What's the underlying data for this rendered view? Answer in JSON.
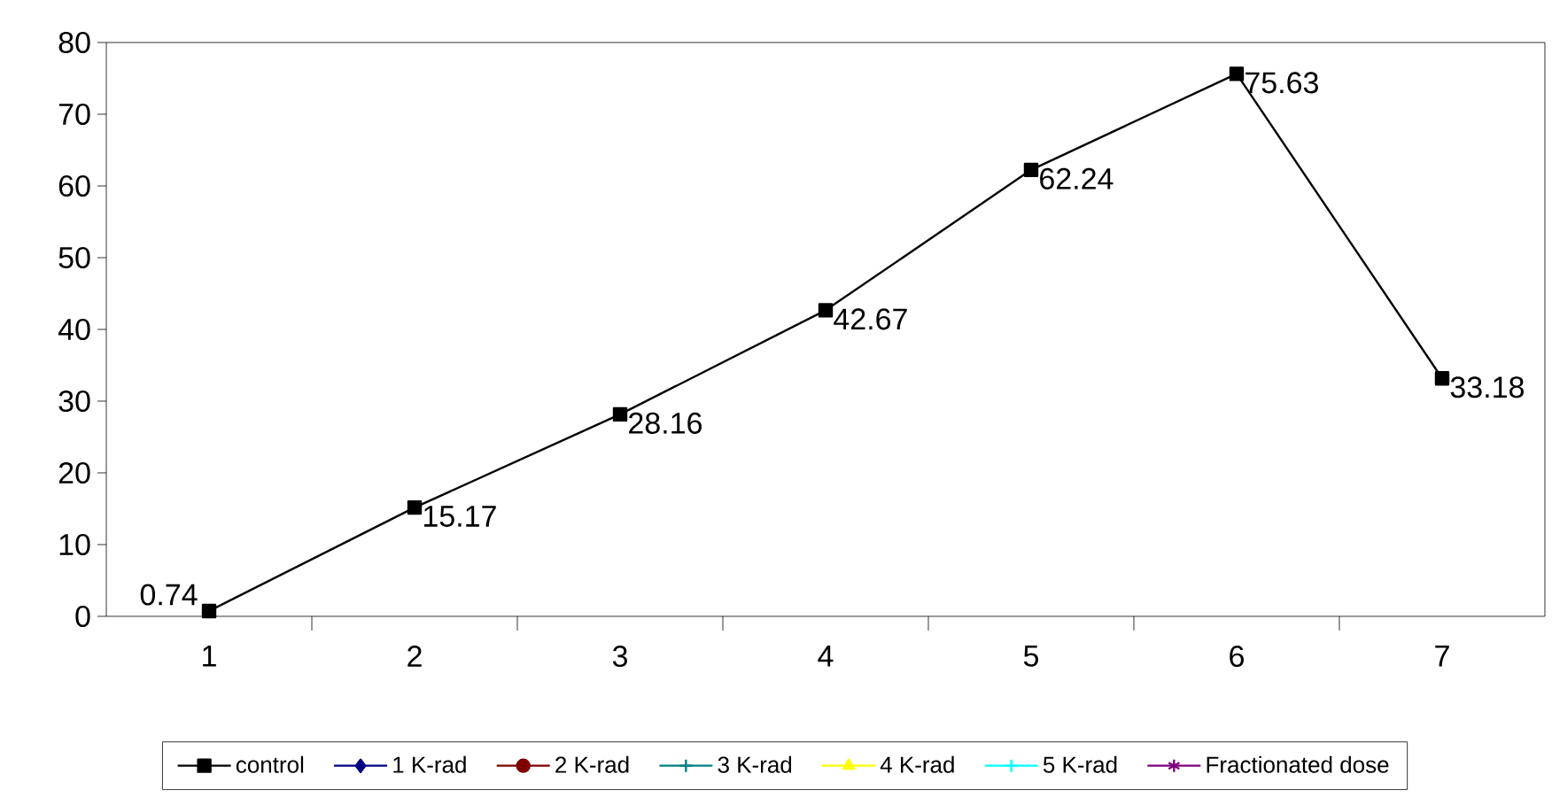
{
  "chart_data": {
    "type": "line",
    "categories": [
      "1",
      "2",
      "3",
      "4",
      "5",
      "6",
      "7"
    ],
    "series": [
      {
        "name": "control",
        "color": "#000000",
        "marker": "square",
        "values": [
          0.74,
          15.17,
          28.16,
          42.67,
          62.24,
          75.63,
          33.18
        ]
      },
      {
        "name": "1 K-rad",
        "color": "#000080",
        "marker": "diamond",
        "values": [
          null,
          null,
          null,
          null,
          null,
          null,
          null
        ]
      },
      {
        "name": "2 K-rad",
        "color": "#800000",
        "marker": "circle",
        "values": [
          null,
          null,
          null,
          null,
          null,
          null,
          null
        ]
      },
      {
        "name": "3 K-rad",
        "color": "#008080",
        "marker": "cross",
        "values": [
          null,
          null,
          null,
          null,
          null,
          null,
          null
        ]
      },
      {
        "name": "4 K-rad",
        "color": "#ffff00",
        "marker": "triangle",
        "values": [
          null,
          null,
          null,
          null,
          null,
          null,
          null
        ]
      },
      {
        "name": "5 K-rad",
        "color": "#00ffff",
        "marker": "cross",
        "values": [
          null,
          null,
          null,
          null,
          null,
          null,
          null
        ]
      },
      {
        "name": "Fractionated dose",
        "color": "#800080",
        "marker": "star",
        "values": [
          null,
          null,
          null,
          null,
          null,
          null,
          null
        ]
      }
    ],
    "ylim": [
      0,
      80
    ],
    "yticks": [
      0,
      10,
      20,
      30,
      40,
      50,
      60,
      70,
      80
    ],
    "data_labels": true,
    "legend": "bottom",
    "line_style": "solid"
  }
}
